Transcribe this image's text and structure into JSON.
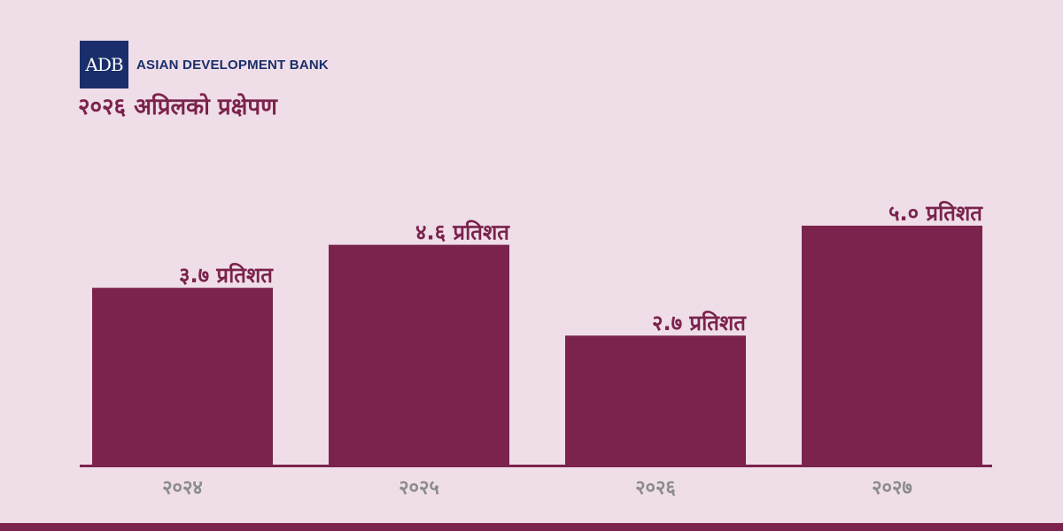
{
  "header": {
    "logo_mark": "ADB",
    "logo_name": "ASIAN DEVELOPMENT BANK",
    "title": "२०२६ अप्रिलको प्रक्षेपण"
  },
  "colors": {
    "background": "#efdee8",
    "bar": "#7b234d",
    "logo": "#1a2e6b",
    "tick_label": "#8c8c8c"
  },
  "chart_data": {
    "type": "bar",
    "categories": [
      "२०२४",
      "२०२५",
      "२०२६",
      "२०२७"
    ],
    "values": [
      3.7,
      4.6,
      2.7,
      5.0
    ],
    "data_labels": [
      "३.७ प्रतिशत",
      "४.६ प्रतिशत",
      "२.७ प्रतिशत",
      "५.० प्रतिशत"
    ],
    "title": "२०२६ अप्रिलको प्रक्षेपण",
    "ylim": [
      0,
      5.6
    ],
    "grid": false,
    "legend": "none"
  }
}
